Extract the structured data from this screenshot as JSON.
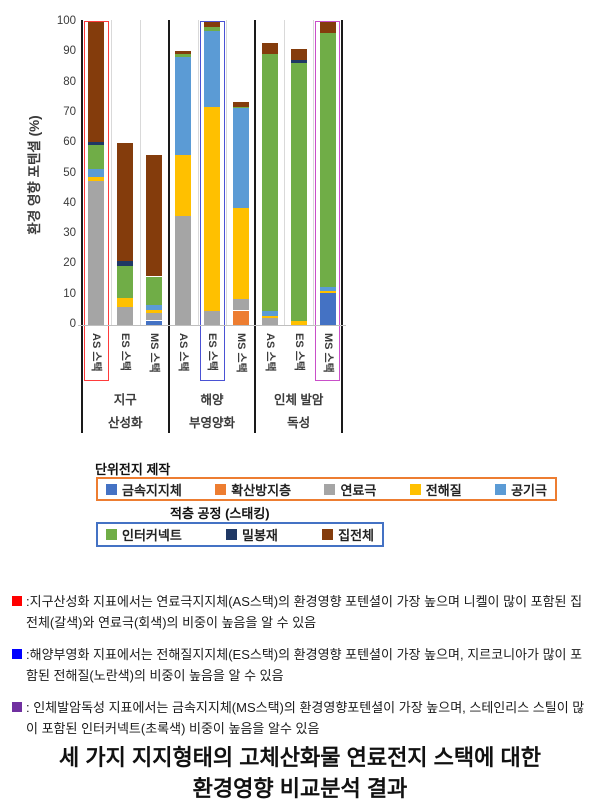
{
  "chart_data": {
    "type": "bar",
    "stacked": true,
    "ylabel": "환경 영향 포텐셜 (%)",
    "ylim": [
      0,
      100
    ],
    "yticks": [
      0,
      10,
      20,
      30,
      40,
      50,
      60,
      70,
      80,
      90,
      100
    ],
    "grid": "none",
    "legend_position": "below",
    "layers": [
      {
        "key": "metal-support",
        "label": "금속지지체",
        "color": "#4472C4"
      },
      {
        "key": "diffusion-barrier",
        "label": "확산방지층",
        "color": "#ED7D31"
      },
      {
        "key": "fuel-electrode",
        "label": "연료극",
        "color": "#A5A5A5"
      },
      {
        "key": "electrolyte",
        "label": "전해질",
        "color": "#FFC000"
      },
      {
        "key": "air-electrode",
        "label": "공기극",
        "color": "#5B9BD5"
      },
      {
        "key": "interconnect",
        "label": "인터커넥트",
        "color": "#70AD47"
      },
      {
        "key": "sealant",
        "label": "밀봉재",
        "color": "#1F3864"
      },
      {
        "key": "current-collector",
        "label": "집전체",
        "color": "#843C0C"
      }
    ],
    "groups": [
      {
        "label_lines": [
          "지구",
          "산성화"
        ],
        "bars": [
          {
            "category": "AS 스택",
            "highlight": "#FF3B3B",
            "total": 100,
            "values": [
              0,
              0,
              47.5,
              1.5,
              2.5,
              8,
              1,
              39.5
            ]
          },
          {
            "category": "ES 스택",
            "highlight": null,
            "total": 60,
            "values": [
              0,
              0,
              6,
              3,
              0,
              10.5,
              1.5,
              39
            ]
          },
          {
            "category": "MS 스택",
            "highlight": null,
            "total": 56,
            "values": [
              1.5,
              0,
              2.5,
              1,
              1.5,
              9.5,
              0,
              40
            ]
          }
        ]
      },
      {
        "label_lines": [
          "해양",
          "부영양화"
        ],
        "bars": [
          {
            "category": "AS 스택",
            "highlight": null,
            "total": 90.5,
            "values": [
              0,
              0,
              36,
              20,
              32.5,
              0.8,
              0,
              1.2
            ]
          },
          {
            "category": "ES 스택",
            "highlight": "#4A52D4",
            "total": 100,
            "values": [
              0,
              0,
              4.5,
              67.5,
              25,
              1.3,
              0,
              1.7
            ]
          },
          {
            "category": "MS 스택",
            "highlight": null,
            "total": 73.5,
            "values": [
              0,
              4.8,
              3.7,
              30,
              33,
              0.5,
              0,
              1.5
            ]
          }
        ]
      },
      {
        "label_lines": [
          "인체 발암",
          "독성"
        ],
        "bars": [
          {
            "category": "AS 스택",
            "highlight": null,
            "total": 93,
            "values": [
              0,
              0,
              2.2,
              0.8,
              1.5,
              85,
              0,
              3.5
            ]
          },
          {
            "category": "ES 스택",
            "highlight": null,
            "total": 91,
            "values": [
              0,
              0,
              0,
              1.3,
              0,
              85.2,
              1,
              3.5
            ]
          },
          {
            "category": "MS 스택",
            "highlight": "#C94FC9",
            "total": 100,
            "values": [
              10.5,
              0,
              0,
              0.8,
              1.2,
              84,
              0,
              3.5
            ]
          }
        ]
      }
    ]
  },
  "legend": {
    "unit_cell": {
      "title": "단위전지 제작",
      "border_color": "#ED7D31",
      "items": [
        {
          "label": "금속지지체",
          "color": "#4472C4"
        },
        {
          "label": "확산방지층",
          "color": "#ED7D31"
        },
        {
          "label": "연료극",
          "color": "#A5A5A5"
        },
        {
          "label": "전해질",
          "color": "#FFC000"
        },
        {
          "label": "공기극",
          "color": "#5B9BD5"
        }
      ]
    },
    "stacking": {
      "title": "적층 공정 (스태킹)",
      "border_color": "#4472C4",
      "items": [
        {
          "label": "인터커넥트",
          "color": "#70AD47"
        },
        {
          "label": "밀봉재",
          "color": "#1F3864"
        },
        {
          "label": "집전체",
          "color": "#843C0C"
        }
      ]
    }
  },
  "notes": [
    {
      "marker_color": "#FF0000",
      "text": ":지구산성화 지표에서는 연료극지지체(AS스택)의 환경영향 포텐셜이 가장 높으며 니켈이 많이 포함된 집전체(갈색)와 연료극(회색)의 비중이 높음을 알 수 있음"
    },
    {
      "marker_color": "#0000FF",
      "text": ":해양부영화 지표에서는 전해질지지체(ES스택)의 환경영향 포텐셜이 가장 높으며, 지르코니아가 많이 포함된 전해질(노란색)의 비중이 높음을 알 수 있음"
    },
    {
      "marker_color": "#7030A0",
      "text": ": 인체발암독성 지표에서는 금속지지체(MS스택)의 환경영향포텐셜이 가장 높으며,  스테인리스 스틸이 많이 포함된 인터커넥트(초록색) 비중이 높음을 알수 있음"
    }
  ],
  "caption": {
    "line1": "세 가지 지지형태의 고체산화물 연료전지 스택에 대한",
    "line2": "환경영향 비교분석 결과"
  }
}
